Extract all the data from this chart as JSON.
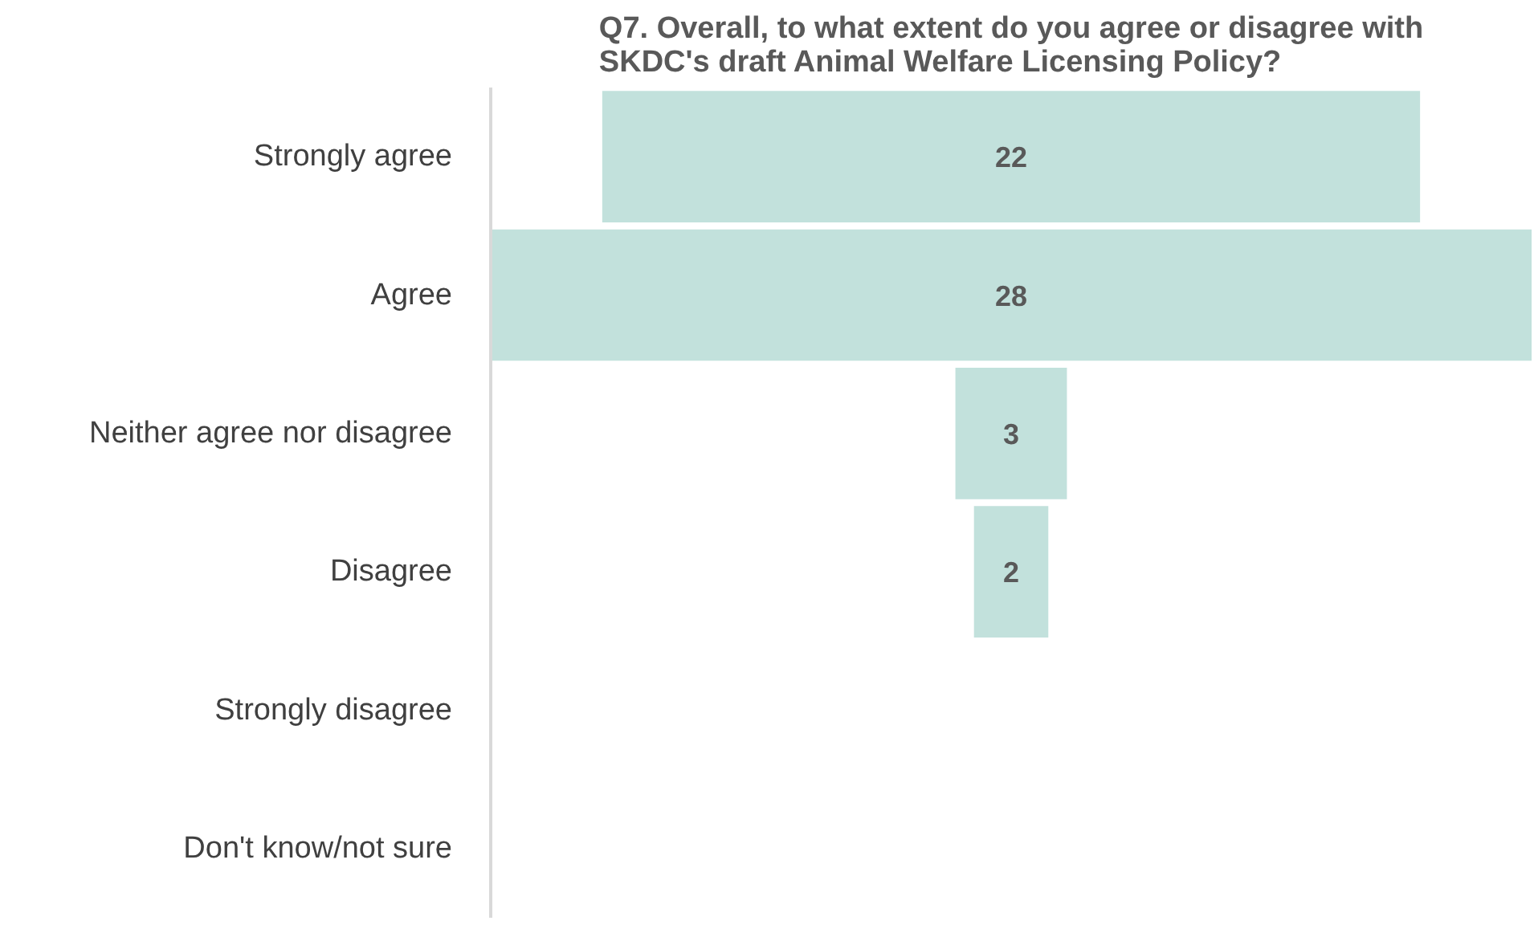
{
  "chart_data": {
    "type": "other",
    "title": "Q7. Overall, to what extent do you agree or disagree with SKDC's draft Animal Welfare Licensing Policy?",
    "categories": [
      "Strongly agree",
      "Agree",
      "Neither agree nor disagree",
      "Disagree",
      "Strongly disagree",
      "Don't know/not sure"
    ],
    "values": [
      22,
      28,
      3,
      2,
      null,
      null
    ],
    "color": "#c2e1dc",
    "data_labels": true
  }
}
